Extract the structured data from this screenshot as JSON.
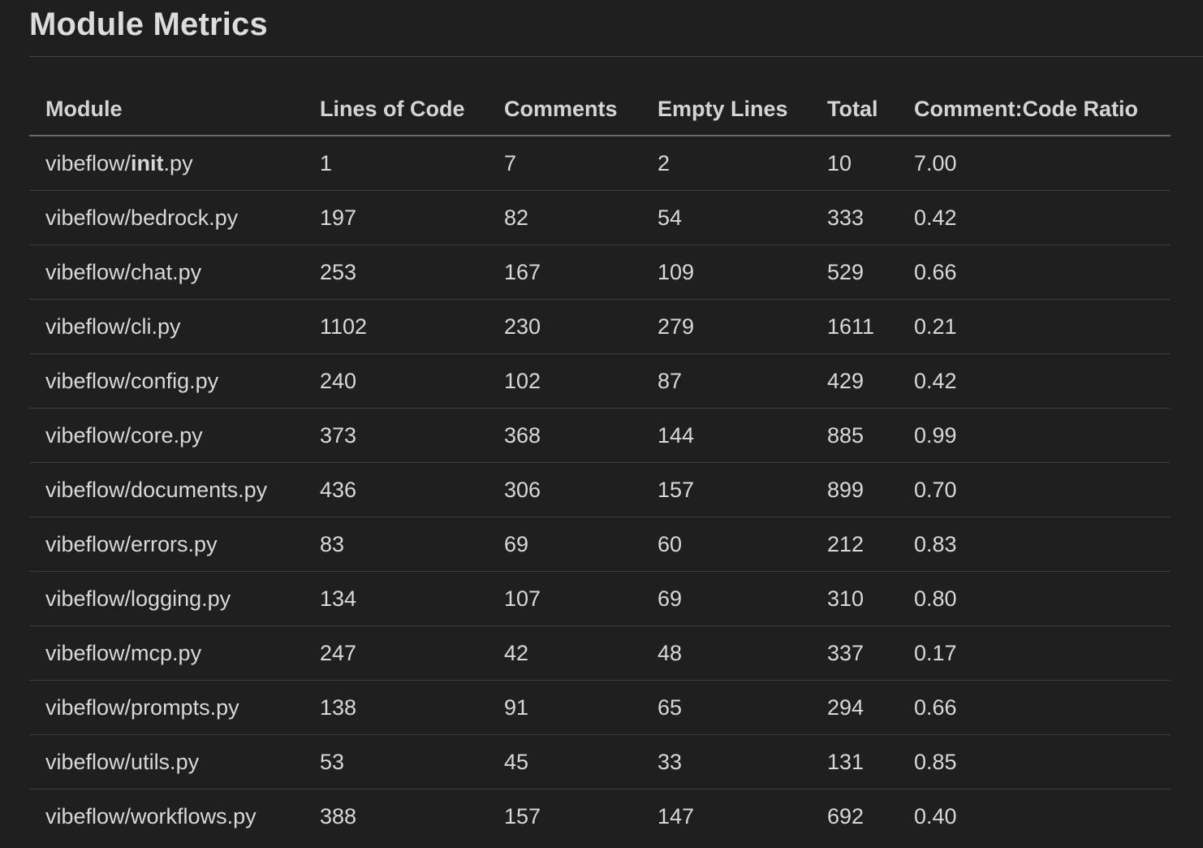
{
  "page": {
    "title": "Module Metrics"
  },
  "table": {
    "headers": {
      "module": "Module",
      "lines_of_code": "Lines of Code",
      "comments": "Comments",
      "empty_lines": "Empty Lines",
      "total": "Total",
      "ratio": "Comment:Code Ratio"
    },
    "first_row": {
      "module_prefix": "vibeflow/",
      "module_bold": "init",
      "module_suffix": ".py",
      "lines_of_code": "1",
      "comments": "7",
      "empty_lines": "2",
      "total": "10",
      "ratio": "7.00"
    },
    "rows": [
      {
        "module": "vibeflow/bedrock.py",
        "lines_of_code": "197",
        "comments": "82",
        "empty_lines": "54",
        "total": "333",
        "ratio": "0.42"
      },
      {
        "module": "vibeflow/chat.py",
        "lines_of_code": "253",
        "comments": "167",
        "empty_lines": "109",
        "total": "529",
        "ratio": "0.66"
      },
      {
        "module": "vibeflow/cli.py",
        "lines_of_code": "1102",
        "comments": "230",
        "empty_lines": "279",
        "total": "1611",
        "ratio": "0.21"
      },
      {
        "module": "vibeflow/config.py",
        "lines_of_code": "240",
        "comments": "102",
        "empty_lines": "87",
        "total": "429",
        "ratio": "0.42"
      },
      {
        "module": "vibeflow/core.py",
        "lines_of_code": "373",
        "comments": "368",
        "empty_lines": "144",
        "total": "885",
        "ratio": "0.99"
      },
      {
        "module": "vibeflow/documents.py",
        "lines_of_code": "436",
        "comments": "306",
        "empty_lines": "157",
        "total": "899",
        "ratio": "0.70"
      },
      {
        "module": "vibeflow/errors.py",
        "lines_of_code": "83",
        "comments": "69",
        "empty_lines": "60",
        "total": "212",
        "ratio": "0.83"
      },
      {
        "module": "vibeflow/logging.py",
        "lines_of_code": "134",
        "comments": "107",
        "empty_lines": "69",
        "total": "310",
        "ratio": "0.80"
      },
      {
        "module": "vibeflow/mcp.py",
        "lines_of_code": "247",
        "comments": "42",
        "empty_lines": "48",
        "total": "337",
        "ratio": "0.17"
      },
      {
        "module": "vibeflow/prompts.py",
        "lines_of_code": "138",
        "comments": "91",
        "empty_lines": "65",
        "total": "294",
        "ratio": "0.66"
      },
      {
        "module": "vibeflow/utils.py",
        "lines_of_code": "53",
        "comments": "45",
        "empty_lines": "33",
        "total": "131",
        "ratio": "0.85"
      },
      {
        "module": "vibeflow/workflows.py",
        "lines_of_code": "388",
        "comments": "157",
        "empty_lines": "147",
        "total": "692",
        "ratio": "0.40"
      }
    ]
  }
}
